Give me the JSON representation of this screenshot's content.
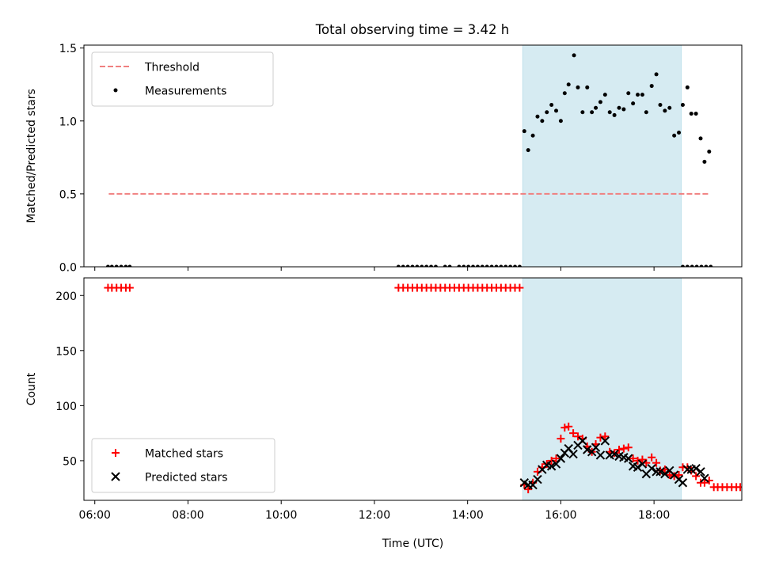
{
  "figure": {
    "title": "Total observing time = 3.42 h"
  },
  "chart_data": [
    {
      "type": "scatter",
      "title": "Total observing time = 3.42 h",
      "xlabel": "",
      "ylabel": "Matched/Predicted stars",
      "xlim": [
        "05:46",
        "19:53"
      ],
      "ylim": [
        0,
        1.52
      ],
      "yticks": [
        0.0,
        0.5,
        1.0,
        1.5
      ],
      "ytick_labels": [
        "0.0",
        "0.5",
        "1.0",
        "1.5"
      ],
      "xticks": [
        "06:00",
        "08:00",
        "10:00",
        "12:00",
        "14:00",
        "16:00",
        "18:00"
      ],
      "grid": false,
      "legend": {
        "position": "top-left",
        "entries": [
          "Threshold",
          "Measurements"
        ]
      },
      "shaded_span": {
        "from": "15:11",
        "to": "18:35",
        "color": "#add8e6"
      },
      "threshold": {
        "name": "Threshold",
        "y": 0.5,
        "x_range": [
          "06:18",
          "19:12"
        ],
        "color": "#f08080"
      },
      "series": [
        {
          "name": "Measurements",
          "color": "#000000",
          "points": [
            [
              "06:17",
              0
            ],
            [
              "06:22",
              0
            ],
            [
              "06:28",
              0
            ],
            [
              "06:34",
              0
            ],
            [
              "06:40",
              0
            ],
            [
              "06:45",
              0
            ],
            [
              "12:31",
              0
            ],
            [
              "12:37",
              0
            ],
            [
              "12:43",
              0
            ],
            [
              "12:49",
              0
            ],
            [
              "12:55",
              0
            ],
            [
              "13:01",
              0
            ],
            [
              "13:07",
              0
            ],
            [
              "13:13",
              0
            ],
            [
              "13:19",
              0
            ],
            [
              "13:31",
              0
            ],
            [
              "13:37",
              0
            ],
            [
              "13:49",
              0
            ],
            [
              "13:55",
              0
            ],
            [
              "14:01",
              0
            ],
            [
              "14:07",
              0
            ],
            [
              "14:13",
              0
            ],
            [
              "14:19",
              0
            ],
            [
              "14:25",
              0
            ],
            [
              "14:31",
              0
            ],
            [
              "14:37",
              0
            ],
            [
              "14:43",
              0
            ],
            [
              "14:49",
              0
            ],
            [
              "14:55",
              0
            ],
            [
              "15:01",
              0
            ],
            [
              "15:07",
              0
            ],
            [
              "15:13",
              0.93
            ],
            [
              "15:18",
              0.8
            ],
            [
              "15:24",
              0.9
            ],
            [
              "15:30",
              1.03
            ],
            [
              "15:36",
              1.0
            ],
            [
              "15:42",
              1.06
            ],
            [
              "15:48",
              1.11
            ],
            [
              "15:54",
              1.07
            ],
            [
              "16:00",
              1.0
            ],
            [
              "16:05",
              1.19
            ],
            [
              "16:10",
              1.25
            ],
            [
              "16:17",
              1.45
            ],
            [
              "16:22",
              1.23
            ],
            [
              "16:28",
              1.06
            ],
            [
              "16:34",
              1.23
            ],
            [
              "16:40",
              1.06
            ],
            [
              "16:45",
              1.09
            ],
            [
              "16:51",
              1.13
            ],
            [
              "16:57",
              1.18
            ],
            [
              "17:03",
              1.06
            ],
            [
              "17:09",
              1.04
            ],
            [
              "17:15",
              1.09
            ],
            [
              "17:21",
              1.08
            ],
            [
              "17:27",
              1.19
            ],
            [
              "17:33",
              1.12
            ],
            [
              "17:39",
              1.18
            ],
            [
              "17:45",
              1.18
            ],
            [
              "17:50",
              1.06
            ],
            [
              "17:57",
              1.24
            ],
            [
              "18:03",
              1.32
            ],
            [
              "18:08",
              1.11
            ],
            [
              "18:14",
              1.07
            ],
            [
              "18:20",
              1.09
            ],
            [
              "18:26",
              0.9
            ],
            [
              "18:32",
              0.92
            ],
            [
              "18:37",
              1.11
            ],
            [
              "18:43",
              1.23
            ],
            [
              "18:48",
              1.05
            ],
            [
              "18:54",
              1.05
            ],
            [
              "19:00",
              0.88
            ],
            [
              "19:05",
              0.72
            ],
            [
              "19:11",
              0.79
            ],
            [
              "18:37",
              0
            ],
            [
              "18:43",
              0
            ],
            [
              "18:49",
              0
            ],
            [
              "18:55",
              0
            ],
            [
              "19:01",
              0
            ],
            [
              "19:07",
              0
            ],
            [
              "19:13",
              0
            ]
          ]
        }
      ]
    },
    {
      "type": "scatter",
      "title": "",
      "xlabel": "Time (UTC)",
      "ylabel": "Count",
      "xlim": [
        "05:46",
        "19:53"
      ],
      "ylim": [
        14,
        216
      ],
      "yticks": [
        50,
        100,
        150,
        200
      ],
      "ytick_labels": [
        "50",
        "100",
        "150",
        "200"
      ],
      "xticks": [
        "06:00",
        "08:00",
        "10:00",
        "12:00",
        "14:00",
        "16:00",
        "18:00"
      ],
      "grid": false,
      "legend": {
        "position": "bottom-left",
        "entries": [
          "Matched stars",
          "Predicted stars"
        ]
      },
      "shaded_span": {
        "from": "15:11",
        "to": "18:35",
        "color": "#add8e6"
      },
      "series": [
        {
          "name": "Matched stars",
          "marker": "+",
          "color": "#ff0000",
          "points": [
            [
              "06:17",
              207
            ],
            [
              "06:22",
              207
            ],
            [
              "06:28",
              207
            ],
            [
              "06:34",
              207
            ],
            [
              "06:40",
              207
            ],
            [
              "06:45",
              207
            ],
            [
              "12:31",
              207
            ],
            [
              "12:37",
              207
            ],
            [
              "12:43",
              207
            ],
            [
              "12:49",
              207
            ],
            [
              "12:55",
              207
            ],
            [
              "13:01",
              207
            ],
            [
              "13:07",
              207
            ],
            [
              "13:13",
              207
            ],
            [
              "13:19",
              207
            ],
            [
              "13:25",
              207
            ],
            [
              "13:31",
              207
            ],
            [
              "13:37",
              207
            ],
            [
              "13:43",
              207
            ],
            [
              "13:49",
              207
            ],
            [
              "13:55",
              207
            ],
            [
              "14:01",
              207
            ],
            [
              "14:07",
              207
            ],
            [
              "14:13",
              207
            ],
            [
              "14:19",
              207
            ],
            [
              "14:25",
              207
            ],
            [
              "14:31",
              207
            ],
            [
              "14:37",
              207
            ],
            [
              "14:43",
              207
            ],
            [
              "14:49",
              207
            ],
            [
              "14:55",
              207
            ],
            [
              "15:01",
              207
            ],
            [
              "15:07",
              207
            ],
            [
              "15:13",
              28
            ],
            [
              "15:18",
              24
            ],
            [
              "15:24",
              30
            ],
            [
              "15:30",
              40
            ],
            [
              "15:36",
              44
            ],
            [
              "15:42",
              47
            ],
            [
              "15:48",
              50
            ],
            [
              "15:54",
              52
            ],
            [
              "16:00",
              70
            ],
            [
              "16:05",
              80
            ],
            [
              "16:10",
              81
            ],
            [
              "16:16",
              75
            ],
            [
              "16:22",
              72
            ],
            [
              "16:28",
              70
            ],
            [
              "16:34",
              63
            ],
            [
              "16:40",
              58
            ],
            [
              "16:45",
              65
            ],
            [
              "16:51",
              71
            ],
            [
              "16:57",
              72
            ],
            [
              "17:03",
              58
            ],
            [
              "17:09",
              57
            ],
            [
              "17:15",
              60
            ],
            [
              "17:21",
              61
            ],
            [
              "17:27",
              62
            ],
            [
              "17:33",
              52
            ],
            [
              "17:39",
              50
            ],
            [
              "17:45",
              51
            ],
            [
              "17:50",
              48
            ],
            [
              "17:57",
              53
            ],
            [
              "18:03",
              48
            ],
            [
              "18:08",
              41
            ],
            [
              "18:14",
              42
            ],
            [
              "18:20",
              37
            ],
            [
              "18:26",
              36
            ],
            [
              "18:32",
              37
            ],
            [
              "18:37",
              44
            ],
            [
              "18:43",
              44
            ],
            [
              "18:48",
              41
            ],
            [
              "18:54",
              36
            ],
            [
              "19:00",
              30
            ],
            [
              "19:05",
              30
            ],
            [
              "19:11",
              32
            ],
            [
              "19:17",
              26
            ],
            [
              "19:22",
              26
            ],
            [
              "19:28",
              26
            ],
            [
              "19:34",
              26
            ],
            [
              "19:40",
              26
            ],
            [
              "19:46",
              26
            ],
            [
              "19:51",
              26
            ]
          ]
        },
        {
          "name": "Predicted stars",
          "marker": "x",
          "color": "#000000",
          "points": [
            [
              "15:13",
              30
            ],
            [
              "15:18",
              28
            ],
            [
              "15:24",
              28
            ],
            [
              "15:30",
              33
            ],
            [
              "15:36",
              42
            ],
            [
              "15:42",
              46
            ],
            [
              "15:48",
              45
            ],
            [
              "15:54",
              47
            ],
            [
              "16:00",
              52
            ],
            [
              "16:05",
              57
            ],
            [
              "16:10",
              61
            ],
            [
              "16:16",
              56
            ],
            [
              "16:22",
              64
            ],
            [
              "16:28",
              68
            ],
            [
              "16:34",
              60
            ],
            [
              "16:40",
              58
            ],
            [
              "16:45",
              62
            ],
            [
              "16:51",
              55
            ],
            [
              "16:57",
              68
            ],
            [
              "17:03",
              55
            ],
            [
              "17:09",
              56
            ],
            [
              "17:15",
              54
            ],
            [
              "17:21",
              53
            ],
            [
              "17:27",
              52
            ],
            [
              "17:33",
              45
            ],
            [
              "17:39",
              44
            ],
            [
              "17:45",
              47
            ],
            [
              "17:50",
              38
            ],
            [
              "17:57",
              43
            ],
            [
              "18:03",
              40
            ],
            [
              "18:08",
              40
            ],
            [
              "18:14",
              38
            ],
            [
              "18:20",
              41
            ],
            [
              "18:26",
              37
            ],
            [
              "18:32",
              33
            ],
            [
              "18:37",
              30
            ],
            [
              "18:43",
              42
            ],
            [
              "18:48",
              42
            ],
            [
              "18:54",
              43
            ],
            [
              "19:00",
              40
            ],
            [
              "19:05",
              34
            ]
          ]
        }
      ]
    }
  ]
}
